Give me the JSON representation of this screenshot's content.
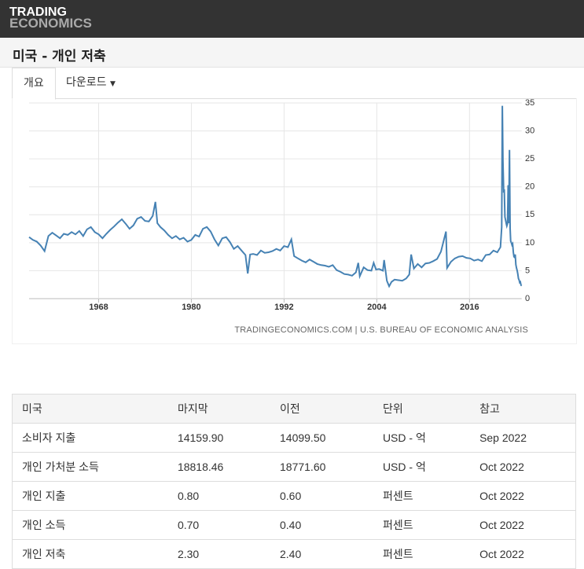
{
  "header": {
    "logo_top": "TRADING",
    "logo_bottom": "ECONOMICS"
  },
  "page_title": "미국 - 개인 저축",
  "tabs": [
    "개요",
    "다운로드"
  ],
  "chart_data": {
    "type": "line",
    "source": "TRADINGECONOMICS.COM | U.S. BUREAU OF ECONOMIC ANALYSIS",
    "xlim": [
      1959,
      2022.75
    ],
    "xticks": [
      1968,
      1980,
      1992,
      2004,
      2016
    ],
    "ylim": [
      0,
      35
    ],
    "yticks": [
      0,
      5,
      10,
      15,
      20,
      25,
      30,
      35
    ],
    "grid": true,
    "series": [
      {
        "name": "개인 저축",
        "color": "#4682b4",
        "x": [
          1959,
          1959.5,
          1960,
          1960.5,
          1961,
          1961.5,
          1962,
          1962.5,
          1963,
          1963.5,
          1964,
          1964.5,
          1965,
          1965.5,
          1966,
          1966.5,
          1967,
          1967.5,
          1968,
          1968.5,
          1969,
          1969.5,
          1970,
          1970.5,
          1971,
          1971.5,
          1972,
          1972.5,
          1973,
          1973.5,
          1974,
          1974.5,
          1975,
          1975.35,
          1975.6,
          1976,
          1976.5,
          1977,
          1977.5,
          1978,
          1978.5,
          1979,
          1979.5,
          1980,
          1980.5,
          1981,
          1981.5,
          1982,
          1982.5,
          1983,
          1983.5,
          1984,
          1984.5,
          1985,
          1985.5,
          1986,
          1986.5,
          1987,
          1987.3,
          1987.6,
          1988,
          1988.5,
          1989,
          1989.5,
          1990,
          1990.5,
          1991,
          1991.5,
          1992,
          1992.5,
          1992.95,
          1993.3,
          1993.8,
          1994.3,
          1994.8,
          1995.3,
          1995.8,
          1996.3,
          1996.8,
          1997.3,
          1997.8,
          1998.3,
          1998.8,
          1999.3,
          1999.8,
          2000.3,
          2000.8,
          2001.3,
          2001.6,
          2001.8,
          2002.3,
          2002.8,
          2003.3,
          2003.6,
          2003.9,
          2004.3,
          2004.8,
          2004.95,
          2005.3,
          2005.6,
          2005.9,
          2006.3,
          2006.8,
          2007.3,
          2007.8,
          2008.2,
          2008.45,
          2008.8,
          2009.3,
          2009.8,
          2010.3,
          2010.8,
          2011.3,
          2011.8,
          2012.3,
          2012.95,
          2013.1,
          2013.6,
          2014.1,
          2014.6,
          2015.1,
          2015.6,
          2016.1,
          2016.6,
          2017.1,
          2017.6,
          2018.1,
          2018.6,
          2019.1,
          2019.6,
          2020.0,
          2020.17,
          2020.25,
          2020.33,
          2020.42,
          2020.5,
          2020.58,
          2020.67,
          2020.75,
          2020.83,
          2020.92,
          2021.0,
          2021.08,
          2021.17,
          2021.25,
          2021.33,
          2021.42,
          2021.5,
          2021.58,
          2021.67,
          2021.75,
          2021.83,
          2021.92,
          2022.0,
          2022.08,
          2022.17,
          2022.25,
          2022.33,
          2022.42,
          2022.5,
          2022.58,
          2022.67,
          2022.75
        ],
        "values": [
          11,
          10.5,
          10.2,
          9.5,
          8.5,
          11.2,
          11.8,
          11.3,
          10.8,
          11.6,
          11.4,
          11.9,
          11.5,
          12.1,
          11.2,
          12.4,
          12.8,
          11.9,
          11.5,
          10.8,
          11.6,
          12.3,
          12.9,
          13.6,
          14.2,
          13.4,
          12.5,
          13.1,
          14.3,
          14.6,
          13.9,
          13.8,
          14.8,
          17.3,
          13.5,
          12.8,
          12.2,
          11.4,
          10.8,
          11.2,
          10.6,
          10.9,
          10.2,
          10.5,
          11.4,
          11.1,
          12.5,
          12.8,
          12.0,
          10.6,
          9.5,
          10.8,
          11.0,
          10.1,
          8.9,
          9.4,
          8.6,
          7.8,
          4.5,
          7.9,
          8.0,
          7.8,
          8.6,
          8.2,
          8.3,
          8.5,
          8.9,
          8.6,
          9.4,
          9.2,
          10.6,
          7.6,
          7.2,
          6.8,
          6.5,
          7.0,
          6.6,
          6.2,
          6.0,
          5.9,
          5.7,
          6.0,
          5.1,
          4.8,
          4.4,
          4.3,
          4.1,
          4.7,
          6.4,
          4.0,
          5.6,
          5.1,
          5.0,
          6.4,
          5.2,
          5.3,
          5.0,
          6.9,
          3.2,
          2.2,
          3.0,
          3.4,
          3.3,
          3.2,
          3.6,
          4.3,
          7.9,
          5.4,
          6.2,
          5.6,
          6.3,
          6.4,
          6.7,
          7.1,
          8.4,
          12.0,
          5.5,
          6.6,
          7.2,
          7.5,
          7.6,
          7.3,
          7.2,
          6.8,
          7.0,
          6.7,
          7.8,
          7.9,
          8.6,
          8.3,
          9.2,
          12.8,
          34.5,
          24.5,
          19.2,
          19.3,
          14.6,
          14.0,
          13.5,
          13.0,
          13.4,
          20.3,
          13.5,
          26.6,
          12.6,
          10.3,
          10.0,
          9.6,
          9.8,
          8.3,
          7.5,
          7.4,
          7.9,
          6.1,
          5.5,
          5.0,
          4.4,
          3.6,
          3.3,
          2.9,
          3.0,
          2.4,
          2.3
        ]
      }
    ]
  },
  "table": {
    "header": [
      "미국",
      "마지막",
      "이전",
      "단위",
      "참고"
    ],
    "rows": [
      [
        "소비자 지출",
        "14159.90",
        "14099.50",
        "USD - 억",
        "Sep 2022"
      ],
      [
        "개인 가처분 소득",
        "18818.46",
        "18771.60",
        "USD - 억",
        "Oct 2022"
      ],
      [
        "개인 지출",
        "0.80",
        "0.60",
        "퍼센트",
        "Oct 2022"
      ],
      [
        "개인 소득",
        "0.70",
        "0.40",
        "퍼센트",
        "Oct 2022"
      ],
      [
        "개인 저축",
        "2.30",
        "2.40",
        "퍼센트",
        "Oct 2022"
      ]
    ]
  }
}
